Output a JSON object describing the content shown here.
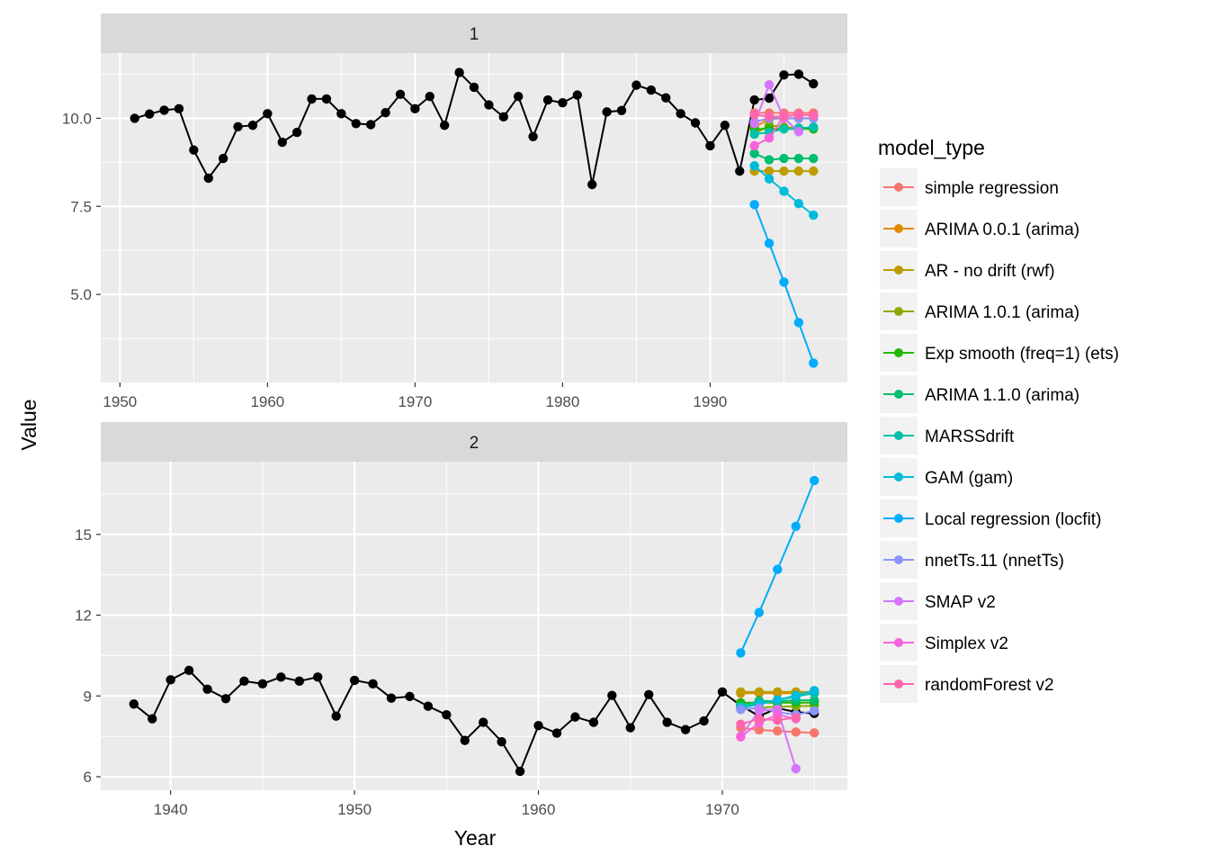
{
  "chart_data": {
    "type": "line",
    "xlabel": "Year",
    "ylabel": "Value",
    "legend": {
      "title": "model_type",
      "placement": "right",
      "entries": [
        {
          "name": "simple regression",
          "color": "#F8766D"
        },
        {
          "name": "ARIMA 0.0.1 (arima)",
          "color": "#E18A00"
        },
        {
          "name": "AR - no drift (rwf)",
          "color": "#BE9C00"
        },
        {
          "name": "ARIMA 1.0.1 (arima)",
          "color": "#8CAB00"
        },
        {
          "name": "Exp smooth (freq=1) (ets)",
          "color": "#24B700"
        },
        {
          "name": "ARIMA 1.1.0 (arima)",
          "color": "#00BE70"
        },
        {
          "name": "MARSSdrift",
          "color": "#00C1AB"
        },
        {
          "name": "GAM (gam)",
          "color": "#00BBDA"
        },
        {
          "name": "Local regression (locfit)",
          "color": "#00ACFC"
        },
        {
          "name": "nnetTs.11 (nnetTs)",
          "color": "#8B93FF"
        },
        {
          "name": "SMAP v2",
          "color": "#D575FE"
        },
        {
          "name": "Simplex v2",
          "color": "#F962DD"
        },
        {
          "name": "randomForest v2",
          "color": "#FF65AC"
        }
      ]
    },
    "grid": true,
    "panels": [
      {
        "strip": "1",
        "xlim": [
          1948.7,
          1999.3
        ],
        "ylim": [
          2.5,
          11.85
        ],
        "x_ticks": [
          1950,
          1960,
          1970,
          1980,
          1990
        ],
        "y_ticks": [
          5.0,
          7.5,
          10.0
        ],
        "y_tick_labels": [
          "5.0",
          "7.5",
          "10.0"
        ],
        "observed": {
          "color": "#000000",
          "x": [
            1951,
            1952,
            1953,
            1954,
            1955,
            1956,
            1957,
            1958,
            1959,
            1960,
            1961,
            1962,
            1963,
            1964,
            1965,
            1966,
            1967,
            1968,
            1969,
            1970,
            1971,
            1972,
            1973,
            1974,
            1975,
            1976,
            1977,
            1978,
            1979,
            1980,
            1981,
            1982,
            1983,
            1984,
            1985,
            1986,
            1987,
            1988,
            1989,
            1990,
            1991,
            1992,
            1993,
            1994,
            1995,
            1996,
            1997
          ],
          "y": [
            10.0,
            10.12,
            10.23,
            10.27,
            9.1,
            8.3,
            8.86,
            9.76,
            9.8,
            10.13,
            9.32,
            9.6,
            10.55,
            10.55,
            10.13,
            9.85,
            9.82,
            10.16,
            10.68,
            10.27,
            10.62,
            9.8,
            11.3,
            10.88,
            10.38,
            10.04,
            10.62,
            9.48,
            10.52,
            10.44,
            10.66,
            8.12,
            10.18,
            10.22,
            10.94,
            10.8,
            10.58,
            10.13,
            9.87,
            9.22,
            9.8,
            8.5,
            10.52,
            10.57,
            11.23,
            11.25,
            10.98
          ]
        },
        "series": [
          {
            "name": "simple regression",
            "x": [
              1993,
              1994,
              1995,
              1996,
              1997
            ],
            "y": [
              10.15,
              10.15,
              10.15,
              10.15,
              10.15
            ]
          },
          {
            "name": "ARIMA 0.0.1 (arima)",
            "x": [
              1993,
              1994,
              1995,
              1996,
              1997
            ],
            "y": [
              9.75,
              9.98,
              10.0,
              10.0,
              10.0
            ]
          },
          {
            "name": "AR - no drift (rwf)",
            "x": [
              1993,
              1994,
              1995,
              1996,
              1997
            ],
            "y": [
              8.5,
              8.5,
              8.5,
              8.5,
              8.5
            ]
          },
          {
            "name": "ARIMA 1.0.1 (arima)",
            "x": [
              1993,
              1994,
              1995,
              1996,
              1997
            ],
            "y": [
              9.55,
              9.8,
              9.75,
              9.72,
              9.7
            ]
          },
          {
            "name": "Exp smooth (freq=1) (ets)",
            "x": [
              1993,
              1994,
              1995,
              1996,
              1997
            ],
            "y": [
              9.7,
              9.7,
              9.7,
              9.7,
              9.7
            ]
          },
          {
            "name": "ARIMA 1.1.0 (arima)",
            "x": [
              1993,
              1994,
              1995,
              1996,
              1997
            ],
            "y": [
              9.0,
              8.82,
              8.86,
              8.86,
              8.86
            ]
          },
          {
            "name": "MARSSdrift",
            "x": [
              1993,
              1994,
              1995,
              1996,
              1997
            ],
            "y": [
              9.55,
              9.6,
              9.7,
              9.72,
              9.75
            ]
          },
          {
            "name": "GAM (gam)",
            "x": [
              1993,
              1994,
              1995,
              1996,
              1997
            ],
            "y": [
              8.65,
              8.28,
              7.93,
              7.58,
              7.25
            ]
          },
          {
            "name": "Local regression (locfit)",
            "x": [
              1993,
              1994,
              1995,
              1996,
              1997
            ],
            "y": [
              7.55,
              6.45,
              5.35,
              4.2,
              3.05
            ]
          },
          {
            "name": "nnetTs.11 (nnetTs)",
            "x": [
              1993,
              1994,
              1995,
              1996,
              1997
            ],
            "y": [
              9.9,
              10.0,
              10.0,
              10.0,
              10.0
            ]
          },
          {
            "name": "SMAP v2",
            "x": [
              1993,
              1994,
              1995,
              1996
            ],
            "y": [
              9.85,
              10.95,
              10.0,
              9.62
            ]
          },
          {
            "name": "Simplex v2",
            "x": [
              1993,
              1994,
              1995,
              1996
            ],
            "y": [
              9.22,
              9.44,
              10.07,
              10.1
            ]
          },
          {
            "name": "randomForest v2",
            "x": [
              1993,
              1994,
              1995,
              1996,
              1997
            ],
            "y": [
              10.1,
              10.05,
              10.05,
              10.1,
              10.08
            ]
          }
        ]
      },
      {
        "strip": "2",
        "xlim": [
          1936.2,
          1976.8
        ],
        "ylim": [
          5.5,
          17.7
        ],
        "x_ticks": [
          1940,
          1950,
          1960,
          1970
        ],
        "y_ticks": [
          6,
          9,
          12,
          15
        ],
        "y_tick_labels": [
          "6",
          "9",
          "12",
          "15"
        ],
        "observed": {
          "color": "#000000",
          "x": [
            1938,
            1939,
            1940,
            1941,
            1942,
            1943,
            1944,
            1945,
            1946,
            1947,
            1948,
            1949,
            1950,
            1951,
            1952,
            1953,
            1954,
            1955,
            1956,
            1957,
            1958,
            1959,
            1960,
            1961,
            1962,
            1963,
            1964,
            1965,
            1966,
            1967,
            1968,
            1969,
            1970,
            1971,
            1972,
            1973,
            1974,
            1975
          ],
          "y": [
            8.7,
            8.15,
            9.6,
            9.95,
            9.25,
            8.9,
            9.55,
            9.45,
            9.7,
            9.55,
            9.7,
            8.25,
            9.58,
            9.45,
            8.92,
            8.98,
            8.62,
            8.3,
            7.35,
            8.02,
            7.3,
            6.2,
            7.9,
            7.62,
            8.22,
            8.02,
            9.02,
            7.82,
            9.05,
            8.02,
            7.75,
            8.07,
            9.15,
            8.65,
            8.25,
            8.55,
            8.4,
            8.35
          ]
        },
        "series": [
          {
            "name": "simple regression",
            "x": [
              1971,
              1972,
              1973,
              1974,
              1975
            ],
            "y": [
              7.82,
              7.74,
              7.7,
              7.66,
              7.63
            ]
          },
          {
            "name": "ARIMA 0.0.1 (arima)",
            "x": [
              1971,
              1972,
              1973,
              1974,
              1975
            ],
            "y": [
              9.1,
              9.1,
              9.1,
              9.1,
              9.1
            ]
          },
          {
            "name": "AR - no drift (rwf)",
            "x": [
              1971,
              1972,
              1973,
              1974,
              1975
            ],
            "y": [
              9.15,
              9.15,
              9.15,
              9.15,
              9.15
            ]
          },
          {
            "name": "ARIMA 1.0.1 (arima)",
            "x": [
              1971,
              1972,
              1973,
              1974,
              1975
            ],
            "y": [
              8.5,
              8.56,
              8.6,
              8.62,
              8.64
            ]
          },
          {
            "name": "Exp smooth (freq=1) (ets)",
            "x": [
              1971,
              1972,
              1973,
              1974,
              1975
            ],
            "y": [
              8.75,
              8.75,
              8.75,
              8.75,
              8.75
            ]
          },
          {
            "name": "ARIMA 1.1.0 (arima)",
            "x": [
              1971,
              1972,
              1973,
              1974,
              1975
            ],
            "y": [
              8.62,
              8.82,
              8.8,
              8.84,
              8.84
            ]
          },
          {
            "name": "MARSSdrift",
            "x": [
              1971,
              1972,
              1973,
              1974,
              1975
            ],
            "y": [
              8.6,
              8.72,
              8.85,
              8.98,
              9.1
            ]
          },
          {
            "name": "GAM (gam)",
            "x": [
              1971,
              1972,
              1973,
              1974,
              1975
            ],
            "y": [
              8.55,
              8.7,
              8.85,
              9.02,
              9.2
            ]
          },
          {
            "name": "Local regression (locfit)",
            "x": [
              1971,
              1972,
              1973,
              1974,
              1975
            ],
            "y": [
              10.6,
              12.1,
              13.7,
              15.3,
              17.0
            ]
          },
          {
            "name": "nnetTs.11 (nnetTs)",
            "x": [
              1971,
              1972,
              1973,
              1974,
              1975
            ],
            "y": [
              8.5,
              8.55,
              8.4,
              8.3,
              8.45
            ]
          },
          {
            "name": "SMAP v2",
            "x": [
              1971,
              1972,
              1973,
              1974
            ],
            "y": [
              7.5,
              8.45,
              8.5,
              6.3
            ]
          },
          {
            "name": "Simplex v2",
            "x": [
              1971,
              1972,
              1973,
              1974
            ],
            "y": [
              7.48,
              8.0,
              8.3,
              8.15
            ]
          },
          {
            "name": "randomForest v2",
            "x": [
              1971,
              1972,
              1973,
              1974
            ],
            "y": [
              7.95,
              8.15,
              8.1,
              8.2
            ]
          }
        ]
      }
    ]
  }
}
